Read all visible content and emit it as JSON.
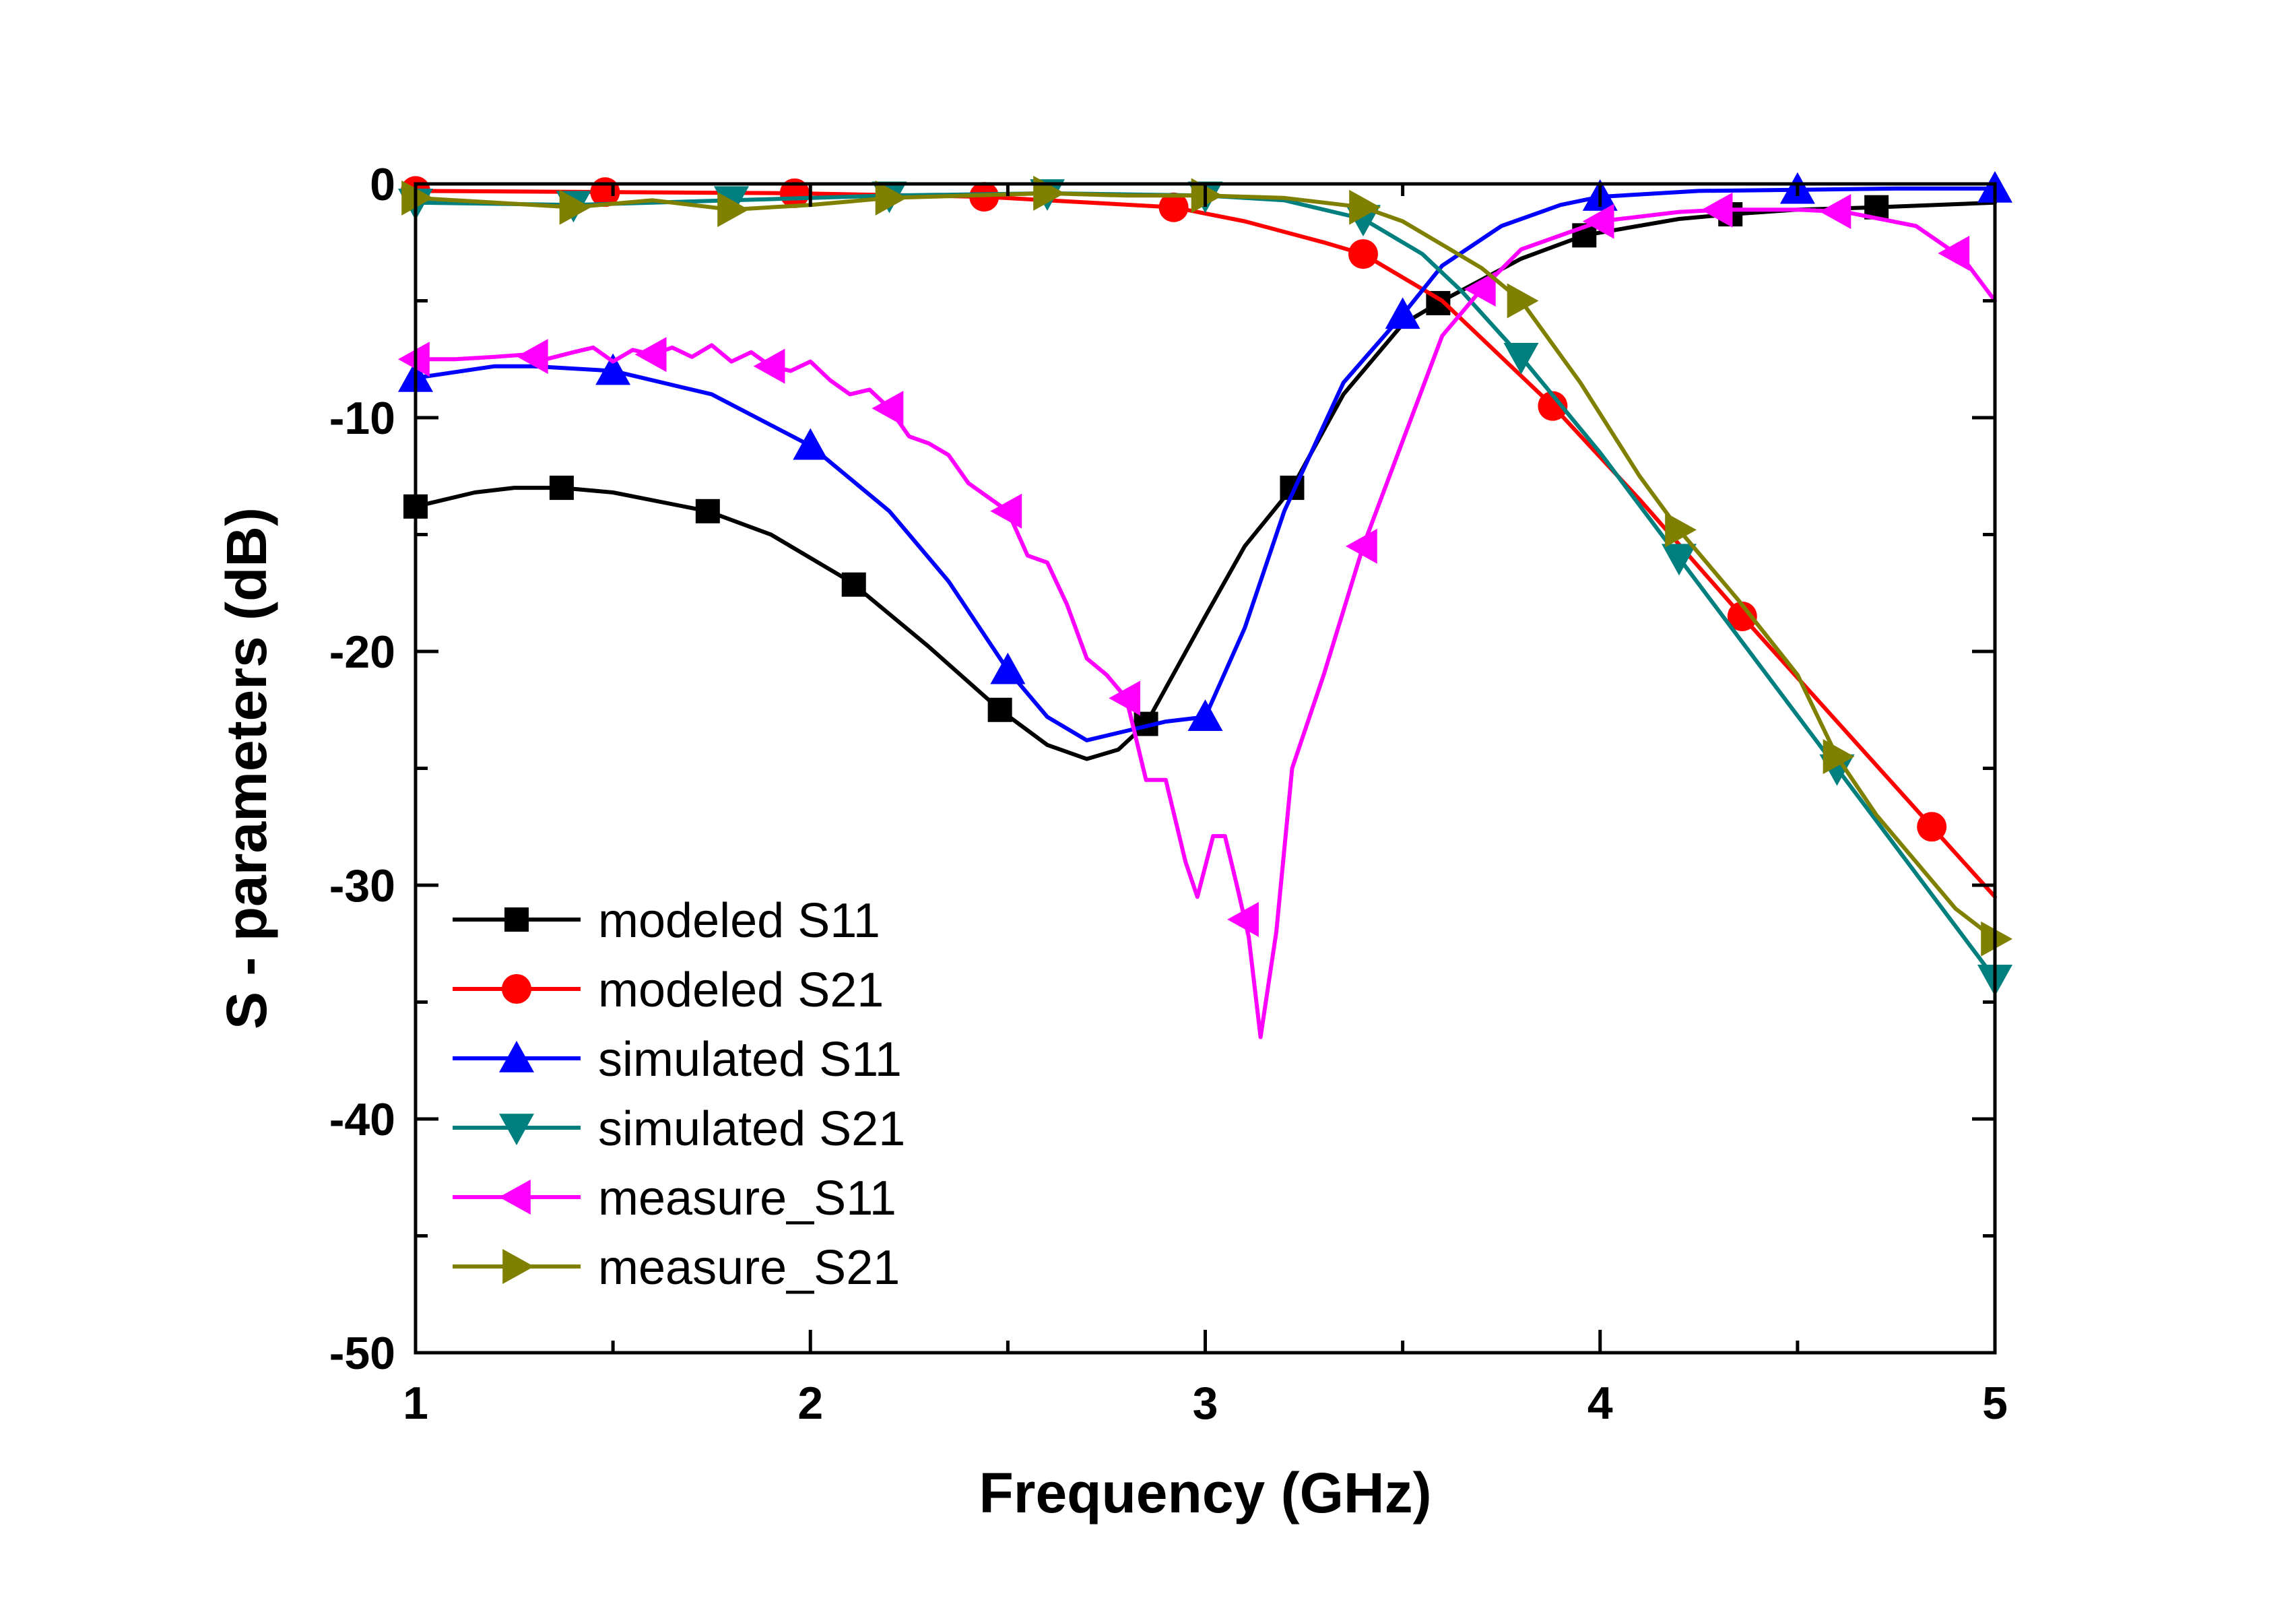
{
  "chart_data": {
    "type": "line",
    "title": "",
    "xlabel": "Frequency  (GHz)",
    "ylabel": "S - parameters  (dB)",
    "xlim": [
      1,
      5
    ],
    "ylim": [
      -50,
      0
    ],
    "xticks": [
      1,
      2,
      3,
      4,
      5
    ],
    "yticks": [
      0,
      -10,
      -20,
      -30,
      -40,
      -50
    ],
    "grid": false,
    "legend_position": "lower-left",
    "series": [
      {
        "name": "modeled S11",
        "color": "#000000",
        "marker": "square",
        "x": [
          1.0,
          1.15,
          1.25,
          1.37,
          1.5,
          1.74,
          1.9,
          2.1,
          2.3,
          2.48,
          2.6,
          2.7,
          2.78,
          2.85,
          3.0,
          3.1,
          3.22,
          3.35,
          3.5,
          3.6,
          3.8,
          3.96,
          4.2,
          4.33,
          4.5,
          4.7,
          4.85,
          5.0
        ],
        "y": [
          -13.8,
          -13.2,
          -13.0,
          -13.0,
          -13.2,
          -14.0,
          -15.0,
          -17.0,
          -19.8,
          -22.5,
          -24.0,
          -24.6,
          -24.2,
          -23.1,
          -18.5,
          -15.5,
          -13.0,
          -9.0,
          -6.0,
          -5.0,
          -3.2,
          -2.2,
          -1.5,
          -1.3,
          -1.1,
          -1.0,
          -0.9,
          -0.8
        ],
        "marker_x": [
          1.0,
          1.37,
          1.74,
          2.11,
          2.48,
          2.85,
          3.22,
          3.59,
          3.96,
          4.33,
          4.7
        ]
      },
      {
        "name": "modeled S21",
        "color": "#ff0000",
        "marker": "circle",
        "x": [
          1.0,
          1.48,
          1.96,
          2.44,
          2.92,
          3.1,
          3.3,
          3.4,
          3.6,
          3.88,
          4.1,
          4.36,
          4.6,
          4.84,
          5.0
        ],
        "y": [
          -0.3,
          -0.35,
          -0.4,
          -0.55,
          -1.0,
          -1.6,
          -2.5,
          -3.0,
          -5.0,
          -9.5,
          -13.5,
          -18.5,
          -23.0,
          -27.5,
          -30.5
        ],
        "marker_x": [
          1.0,
          1.48,
          1.96,
          2.44,
          2.92,
          3.4,
          3.88,
          4.36,
          4.84
        ]
      },
      {
        "name": "simulated S11",
        "color": "#0000ff",
        "marker": "triangle-up",
        "x": [
          1.0,
          1.2,
          1.3,
          1.5,
          1.75,
          2.0,
          2.2,
          2.35,
          2.5,
          2.6,
          2.7,
          2.8,
          2.9,
          3.0,
          3.1,
          3.2,
          3.35,
          3.5,
          3.6,
          3.75,
          3.9,
          4.0,
          4.25,
          4.5,
          4.75,
          5.0
        ],
        "y": [
          -8.3,
          -7.8,
          -7.8,
          -8.0,
          -9.0,
          -11.2,
          -14.0,
          -17.0,
          -20.8,
          -22.8,
          -23.8,
          -23.4,
          -23.0,
          -22.8,
          -19.0,
          -14.0,
          -8.5,
          -5.6,
          -3.5,
          -1.8,
          -0.9,
          -0.55,
          -0.3,
          -0.25,
          -0.2,
          -0.2
        ],
        "marker_x": [
          1.0,
          1.5,
          2.0,
          2.5,
          3.0,
          3.5,
          4.0,
          4.5,
          5.0
        ]
      },
      {
        "name": "simulated S21",
        "color": "#007f7f",
        "marker": "triangle-down",
        "x": [
          1.0,
          1.4,
          1.8,
          2.2,
          2.6,
          3.0,
          3.2,
          3.4,
          3.55,
          3.65,
          3.8,
          4.0,
          4.2,
          4.4,
          4.6,
          4.8,
          5.0
        ],
        "y": [
          -0.8,
          -0.9,
          -0.7,
          -0.5,
          -0.4,
          -0.5,
          -0.7,
          -1.5,
          -3.0,
          -4.6,
          -7.4,
          -11.5,
          -16.0,
          -20.5,
          -25.0,
          -29.5,
          -34.0
        ],
        "marker_x": [
          1.0,
          1.4,
          1.8,
          2.2,
          2.6,
          3.0,
          3.4,
          3.8,
          4.2,
          4.6,
          5.0
        ]
      },
      {
        "name": "measure_S11",
        "color": "#ff00ff",
        "marker": "triangle-left",
        "x": [
          1.0,
          1.1,
          1.2,
          1.28,
          1.33,
          1.4,
          1.45,
          1.5,
          1.55,
          1.6,
          1.65,
          1.7,
          1.75,
          1.8,
          1.85,
          1.9,
          1.95,
          2.0,
          2.05,
          2.1,
          2.15,
          2.2,
          2.25,
          2.3,
          2.35,
          2.4,
          2.45,
          2.5,
          2.55,
          2.6,
          2.65,
          2.7,
          2.75,
          2.8,
          2.85,
          2.9,
          2.95,
          2.98,
          3.02,
          3.05,
          3.08,
          3.11,
          3.14,
          3.18,
          3.22,
          3.3,
          3.4,
          3.5,
          3.6,
          3.7,
          3.8,
          4.0,
          4.2,
          4.32,
          4.5,
          4.62,
          4.8,
          4.92,
          5.0
        ],
        "y": [
          -7.5,
          -7.5,
          -7.4,
          -7.3,
          -7.5,
          -7.2,
          -7.0,
          -7.6,
          -7.1,
          -7.3,
          -7.0,
          -7.4,
          -6.9,
          -7.6,
          -7.2,
          -7.8,
          -8.0,
          -7.6,
          -8.4,
          -9.0,
          -8.8,
          -9.6,
          -10.8,
          -11.1,
          -11.6,
          -12.8,
          -13.4,
          -14.0,
          -15.9,
          -16.2,
          -18.0,
          -20.3,
          -21.0,
          -22.0,
          -25.5,
          -25.5,
          -29.0,
          -30.5,
          -27.9,
          -27.9,
          -30.0,
          -32.2,
          -36.5,
          -32.0,
          -25.0,
          -21.0,
          -15.5,
          -11.0,
          -6.5,
          -4.5,
          -2.8,
          -1.6,
          -1.2,
          -1.1,
          -1.1,
          -1.2,
          -1.8,
          -3.2,
          -5.0
        ],
        "marker_x": [
          1.0,
          1.3,
          1.6,
          1.9,
          2.2,
          2.5,
          2.8,
          3.1,
          3.4,
          3.7,
          4.0,
          4.3,
          4.6,
          4.9
        ]
      },
      {
        "name": "measure_S21",
        "color": "#808000",
        "marker": "triangle-right",
        "x": [
          1.0,
          1.2,
          1.4,
          1.6,
          1.8,
          2.0,
          2.2,
          2.4,
          2.6,
          2.8,
          3.0,
          3.2,
          3.4,
          3.5,
          3.6,
          3.7,
          3.8,
          3.95,
          4.1,
          4.2,
          4.35,
          4.5,
          4.6,
          4.7,
          4.8,
          4.9,
          5.0
        ],
        "y": [
          -0.6,
          -0.8,
          -1.0,
          -0.7,
          -1.1,
          -0.9,
          -0.6,
          -0.5,
          -0.4,
          -0.5,
          -0.5,
          -0.6,
          -1.0,
          -1.6,
          -2.6,
          -3.6,
          -5.0,
          -8.5,
          -12.5,
          -14.8,
          -17.8,
          -21.0,
          -24.5,
          -27.0,
          -29.0,
          -31.0,
          -32.3
        ],
        "marker_x": [
          1.0,
          1.4,
          1.8,
          2.2,
          2.6,
          3.0,
          3.4,
          3.8,
          4.2,
          4.6,
          5.0
        ]
      }
    ]
  }
}
